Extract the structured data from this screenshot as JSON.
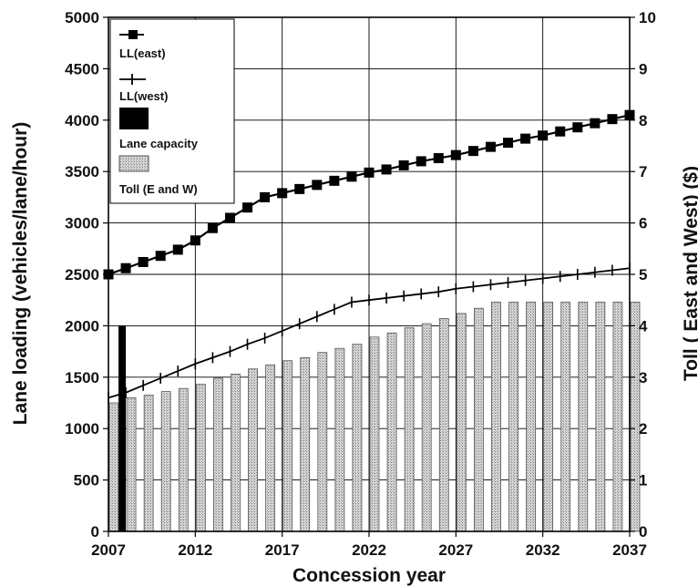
{
  "chart_data": {
    "type": "bar+line",
    "title": "",
    "xlabel": "Concession year",
    "ylabel": "Lane loading (vehicles/lane/hour)",
    "y2label": "Toll ( East and West) ($)",
    "xlim": [
      2007,
      2037
    ],
    "ylim": [
      0,
      5000
    ],
    "y2lim": [
      0,
      10
    ],
    "x_ticks": [
      "2007",
      "2012",
      "2017",
      "2022",
      "2027",
      "2032",
      "2037"
    ],
    "y_ticks": [
      "0",
      "500",
      "1000",
      "1500",
      "2000",
      "2500",
      "3000",
      "3500",
      "4000",
      "4500",
      "5000"
    ],
    "y2_ticks": [
      "0",
      "1",
      "2",
      "3",
      "4",
      "5",
      "6",
      "7",
      "8",
      "9",
      "10"
    ],
    "grid": true,
    "legend_position": "top-left",
    "legend": [
      "LL(east)",
      "LL(west)",
      "Lane capacity",
      "Toll (E and W)"
    ],
    "series": [
      {
        "name": "LL(east)",
        "axis": "left",
        "marker": "square",
        "x": [
          2007,
          2008,
          2009,
          2010,
          2011,
          2012,
          2013,
          2014,
          2015,
          2016,
          2017,
          2018,
          2019,
          2020,
          2021,
          2022,
          2023,
          2024,
          2025,
          2026,
          2027,
          2028,
          2029,
          2030,
          2031,
          2032,
          2033,
          2034,
          2035,
          2036,
          2037
        ],
        "values": [
          2500,
          2560,
          2620,
          2680,
          2740,
          2830,
          2950,
          3050,
          3150,
          3250,
          3290,
          3330,
          3370,
          3410,
          3450,
          3490,
          3520,
          3560,
          3600,
          3630,
          3660,
          3700,
          3740,
          3780,
          3820,
          3850,
          3890,
          3930,
          3970,
          4010,
          4050
        ]
      },
      {
        "name": "LL(west)",
        "axis": "left",
        "marker": "plus",
        "x": [
          2007,
          2008,
          2009,
          2010,
          2011,
          2012,
          2013,
          2014,
          2015,
          2016,
          2017,
          2018,
          2019,
          2020,
          2021,
          2022,
          2023,
          2024,
          2025,
          2026,
          2027,
          2028,
          2029,
          2030,
          2031,
          2032,
          2033,
          2034,
          2035,
          2036,
          2037
        ],
        "values": [
          1300,
          1350,
          1420,
          1490,
          1560,
          1630,
          1690,
          1750,
          1820,
          1880,
          1950,
          2020,
          2090,
          2160,
          2230,
          2250,
          2270,
          2290,
          2310,
          2330,
          2360,
          2380,
          2400,
          2420,
          2440,
          2460,
          2480,
          2500,
          2520,
          2540,
          2560
        ]
      },
      {
        "name": "Lane capacity",
        "axis": "left",
        "marker": "bar",
        "x": [
          2008
        ],
        "values": [
          2000
        ]
      },
      {
        "name": "Toll (E and W)",
        "axis": "right",
        "marker": "bar",
        "x": [
          2007,
          2008,
          2009,
          2010,
          2011,
          2012,
          2013,
          2014,
          2015,
          2016,
          2017,
          2018,
          2019,
          2020,
          2021,
          2022,
          2023,
          2024,
          2025,
          2026,
          2027,
          2028,
          2029,
          2030,
          2031,
          2032,
          2033,
          2034,
          2035,
          2036,
          2037
        ],
        "values": [
          2.5,
          2.6,
          2.65,
          2.72,
          2.78,
          2.86,
          2.98,
          3.06,
          3.16,
          3.24,
          3.32,
          3.38,
          3.48,
          3.56,
          3.64,
          3.78,
          3.86,
          3.96,
          4.04,
          4.14,
          4.24,
          4.34,
          4.46,
          4.46,
          4.46,
          4.46,
          4.46,
          4.46,
          4.46,
          4.46,
          4.46
        ]
      }
    ],
    "colors": {
      "line": "#000000",
      "toll_bar_fill": "#c8c8c8",
      "toll_bar_stroke": "#555555",
      "capacity_bar": "#000000",
      "grid": "#000000"
    }
  }
}
